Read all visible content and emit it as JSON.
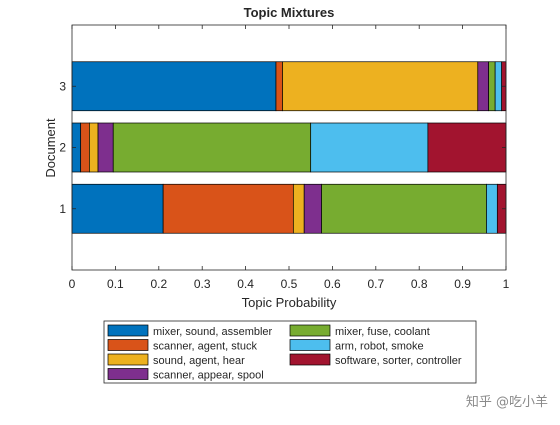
{
  "chart_data": {
    "type": "bar",
    "orientation": "horizontal-stacked",
    "title": "Topic Mixtures",
    "xlabel": "Topic Probability",
    "ylabel": "Document",
    "xlim": [
      0,
      1
    ],
    "ylim": [
      0,
      4
    ],
    "xticks": [
      "0",
      "0.1",
      "0.2",
      "0.3",
      "0.4",
      "0.5",
      "0.6",
      "0.7",
      "0.8",
      "0.9",
      "1"
    ],
    "categories": [
      "1",
      "2",
      "3"
    ],
    "grid": false,
    "legend_position": "bottom",
    "series": [
      {
        "name": "mixer, sound, assembler",
        "color": "#0072BD",
        "values": [
          0.21,
          0.02,
          0.47
        ]
      },
      {
        "name": "scanner, agent, stuck",
        "color": "#D95319",
        "values": [
          0.3,
          0.02,
          0.015
        ]
      },
      {
        "name": "sound, agent, hear",
        "color": "#EDB120",
        "values": [
          0.025,
          0.02,
          0.45
        ]
      },
      {
        "name": "scanner, appear, spool",
        "color": "#7E2F8E",
        "values": [
          0.04,
          0.035,
          0.025
        ]
      },
      {
        "name": "mixer, fuse, coolant",
        "color": "#77AC30",
        "values": [
          0.38,
          0.455,
          0.015
        ]
      },
      {
        "name": "arm, robot, smoke",
        "color": "#4DBEEE",
        "values": [
          0.025,
          0.27,
          0.015
        ]
      },
      {
        "name": "software, sorter, controller",
        "color": "#A2142F",
        "values": [
          0.02,
          0.18,
          0.01
        ]
      }
    ]
  },
  "watermark": "知乎 @吃小羊"
}
